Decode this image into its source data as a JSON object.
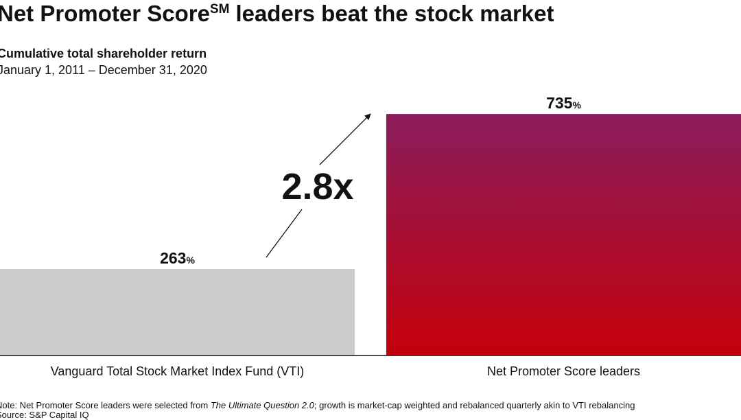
{
  "chart_data": {
    "type": "bar",
    "title": {
      "main": "Net Promoter Score",
      "mark": "SM",
      "rest": "leaders beat the stock market"
    },
    "subtitle": "Cumulative total shareholder return",
    "period": "January 1, 2011 – December 31, 2020",
    "categories": [
      "Vanguard Total Stock Market Index Fund (VTI)",
      "Net Promoter Score leaders"
    ],
    "values": [
      263,
      735
    ],
    "value_labels": [
      "263%",
      "735%"
    ],
    "colors": [
      "#cccccc",
      {
        "top": "#8a1d5c",
        "bottom": "#c5000b"
      }
    ],
    "ylim": [
      0,
      800
    ],
    "annotation": {
      "text": "2.8x",
      "color": "#cc0000"
    },
    "note": [
      "Note: Net Promoter Score leaders were selected from ",
      "The Ultimate Question 2.0",
      "; growth is market-cap weighted and rebalanced quarterly akin to VTI rebalancing"
    ],
    "source": "Source: S&P Capital IQ"
  }
}
